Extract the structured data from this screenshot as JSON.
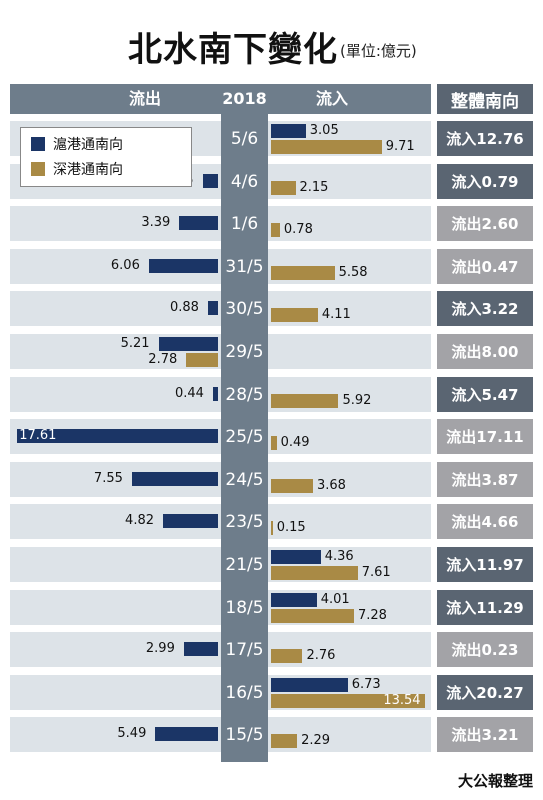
{
  "title": "北水南下變化",
  "unit": "(單位:億元)",
  "header": {
    "outflow": "流出",
    "year": "2018",
    "inflow": "流入",
    "net": "整體南向"
  },
  "legend": [
    {
      "name": "滬港通南向",
      "color": "#1b3566"
    },
    {
      "name": "深港通南向",
      "color": "#a98a45"
    }
  ],
  "source": "大公報整理",
  "colors": {
    "net_inflow": "#5a6572",
    "net_outflow": "#a3a3a7",
    "row_bg": "#dde3e8",
    "date_band": "#6e7d8b"
  },
  "chart_data": {
    "type": "bar",
    "title": "北水南下變化",
    "unit": "億元",
    "categories": [
      "5/6",
      "4/6",
      "1/6",
      "31/5",
      "30/5",
      "29/5",
      "28/5",
      "25/5",
      "24/5",
      "23/5",
      "21/5",
      "18/5",
      "17/5",
      "16/5",
      "15/5"
    ],
    "series": [
      {
        "name": "滬港通南向",
        "values": [
          3.05,
          -1.35,
          -3.39,
          -6.06,
          -0.88,
          -5.21,
          -0.44,
          -17.61,
          -7.55,
          -4.82,
          4.36,
          4.01,
          -2.99,
          6.73,
          -5.49
        ]
      },
      {
        "name": "深港通南向",
        "values": [
          9.71,
          2.15,
          0.78,
          5.58,
          4.11,
          -2.78,
          5.92,
          0.49,
          3.68,
          0.15,
          7.61,
          7.28,
          2.76,
          13.54,
          2.29
        ]
      }
    ],
    "labels": {
      "sh": [
        "3.05",
        "1.35",
        "3.39",
        "6.06",
        "0.88",
        "5.21",
        "0.44",
        "17.61",
        "7.55",
        "4.82",
        "4.36",
        "4.01",
        "2.99",
        "6.73",
        "5.49"
      ],
      "sz": [
        "9.71",
        "2.15",
        "0.78",
        "5.58",
        "4.11",
        "2.78",
        "5.92",
        "0.49",
        "3.68",
        "0.15",
        "7.61",
        "7.28",
        "2.76",
        "13.54",
        "2.29"
      ]
    },
    "net": [
      "流入12.76",
      "流入0.79",
      "流出2.60",
      "流出0.47",
      "流入3.22",
      "流出8.00",
      "流入5.47",
      "流出17.11",
      "流出3.87",
      "流出4.66",
      "流入11.97",
      "流入11.29",
      "流出0.23",
      "流入20.27",
      "流出3.21"
    ]
  }
}
